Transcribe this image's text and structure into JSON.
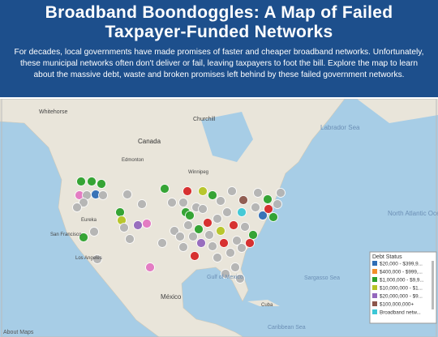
{
  "header": {
    "title": "Broadband Boondoggles: A Map of Failed Taxpayer-Funded Networks",
    "description": "For decades, local governments have made promises of faster and cheaper broadband networks. Unfortunately, these municipal networks often don't deliver or fail, leaving taxpayers to foot the bill. Explore the map to learn about the massive debt, waste and broken promises left behind by these failed government networks."
  },
  "map": {
    "labels": [
      "Whitehorse",
      "Churchill",
      "Canada",
      "Edmonton",
      "Winnipeg",
      "Labrador Sea",
      "Eureka",
      "San Francisco",
      "Los Angeles",
      "North Atlantic Ocean",
      "Gulf of Mexico",
      "Sargasso Sea",
      "México",
      "Cuba",
      "Caribbean Sea"
    ],
    "attribution": "About Maps"
  },
  "legend": {
    "title": "Debt Status",
    "items": [
      {
        "label": "$20,000 - $399,9...",
        "color": "#2f6db5"
      },
      {
        "label": "$400,000 - $999,...",
        "color": "#f28e2b"
      },
      {
        "label": "$1,000,000 - $9,9...",
        "color": "#2ca02c"
      },
      {
        "label": "$10,000,000 - $1...",
        "color": "#b5c425"
      },
      {
        "label": "$20,000,000 - $9...",
        "color": "#9467bd"
      },
      {
        "label": "$100,000,000+",
        "color": "#8c564b"
      },
      {
        "label": "Broadband netw...",
        "color": "#3cc7d6"
      }
    ]
  }
}
